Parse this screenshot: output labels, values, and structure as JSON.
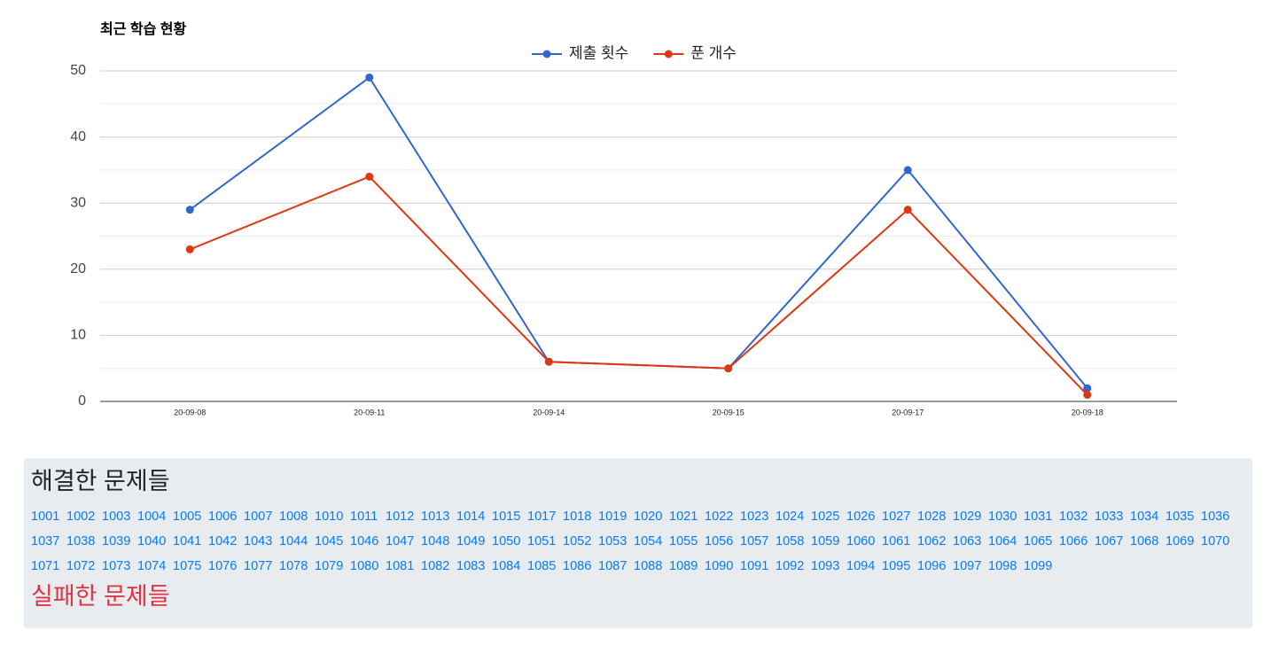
{
  "chart_data": {
    "type": "line",
    "title": "최근 학습 현황",
    "categories": [
      "20-09-08",
      "20-09-11",
      "20-09-14",
      "20-09-15",
      "20-09-17",
      "20-09-18"
    ],
    "series": [
      {
        "name": "제출 횟수",
        "color": "#3366cc",
        "values": [
          29,
          49,
          6,
          5,
          35,
          2
        ]
      },
      {
        "name": "푼 개수",
        "color": "#dc3912",
        "values": [
          23,
          34,
          6,
          5,
          29,
          1
        ]
      }
    ],
    "ylim": [
      0,
      50
    ],
    "yticks": [
      0,
      10,
      20,
      30,
      40,
      50
    ],
    "yminorticks": [
      5,
      15,
      25,
      35,
      45
    ],
    "grid": true,
    "legend": "top"
  },
  "solved": {
    "title": "해결한 문제들",
    "problems": [
      "1001",
      "1002",
      "1003",
      "1004",
      "1005",
      "1006",
      "1007",
      "1008",
      "1010",
      "1011",
      "1012",
      "1013",
      "1014",
      "1015",
      "1017",
      "1018",
      "1019",
      "1020",
      "1021",
      "1022",
      "1023",
      "1024",
      "1025",
      "1026",
      "1027",
      "1028",
      "1029",
      "1030",
      "1031",
      "1032",
      "1033",
      "1034",
      "1035",
      "1036",
      "1037",
      "1038",
      "1039",
      "1040",
      "1041",
      "1042",
      "1043",
      "1044",
      "1045",
      "1046",
      "1047",
      "1048",
      "1049",
      "1050",
      "1051",
      "1052",
      "1053",
      "1054",
      "1055",
      "1056",
      "1057",
      "1058",
      "1059",
      "1060",
      "1061",
      "1062",
      "1063",
      "1064",
      "1065",
      "1066",
      "1067",
      "1068",
      "1069",
      "1070",
      "1071",
      "1072",
      "1073",
      "1074",
      "1075",
      "1076",
      "1077",
      "1078",
      "1079",
      "1080",
      "1081",
      "1082",
      "1083",
      "1084",
      "1085",
      "1086",
      "1087",
      "1088",
      "1089",
      "1090",
      "1091",
      "1092",
      "1093",
      "1094",
      "1095",
      "1096",
      "1097",
      "1098",
      "1099"
    ]
  },
  "failed": {
    "title": "실패한 문제들"
  }
}
